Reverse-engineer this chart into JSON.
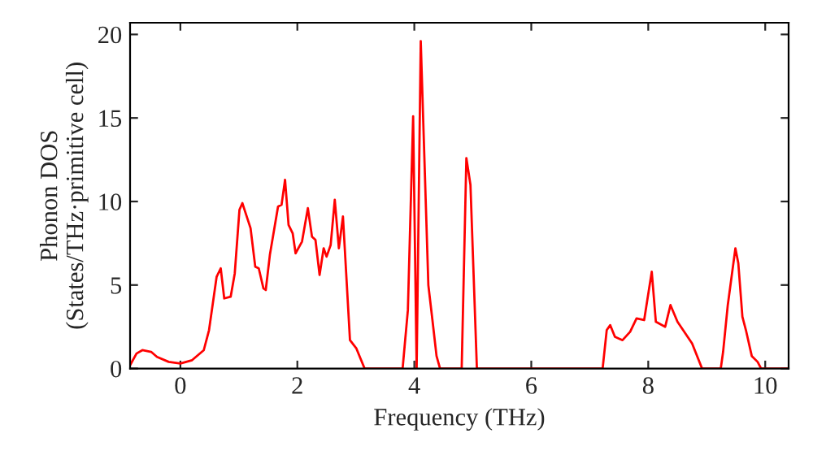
{
  "chart_data": {
    "type": "line",
    "xlabel": "Frequency (THz)",
    "ylabel": "Phonon DOS\n(States/THz·primitive cell)",
    "xlim": [
      -0.86,
      10.4
    ],
    "ylim": [
      0,
      20.7
    ],
    "xticks": [
      0,
      2,
      4,
      6,
      8,
      10
    ],
    "yticks": [
      0,
      5,
      10,
      15,
      20
    ],
    "grid": false,
    "marker": "none",
    "line_style": "solid",
    "series": [
      {
        "color": "#ff0000",
        "x": [
          -0.86,
          -0.75,
          -0.65,
          -0.5,
          -0.4,
          -0.2,
          0,
          0.2,
          0.4,
          0.49,
          0.62,
          0.69,
          0.75,
          0.86,
          0.93,
          1.01,
          1.06,
          1.2,
          1.28,
          1.34,
          1.42,
          1.46,
          1.53,
          1.67,
          1.73,
          1.79,
          1.85,
          1.92,
          1.97,
          2.08,
          2.18,
          2.25,
          2.31,
          2.38,
          2.45,
          2.5,
          2.57,
          2.64,
          2.71,
          2.78,
          2.9,
          3.01,
          3.15,
          3.8,
          3.89,
          3.98,
          4.04,
          4.11,
          4.24,
          4.31,
          4.38,
          4.44,
          4.81,
          4.89,
          4.96,
          5.07,
          7.22,
          7.29,
          7.35,
          7.43,
          7.56,
          7.69,
          7.8,
          7.93,
          8.06,
          8.13,
          8.29,
          8.38,
          8.5,
          8.75,
          8.92,
          9.24,
          9.28,
          9.36,
          9.49,
          9.54,
          9.61,
          9.67,
          9.77,
          9.87,
          9.93,
          10.4
        ],
        "values": [
          0.2,
          0.9,
          1.1,
          1.0,
          0.7,
          0.4,
          0.3,
          0.5,
          1.1,
          2.3,
          5.5,
          6.0,
          4.2,
          4.3,
          5.7,
          9.5,
          9.9,
          8.4,
          6.1,
          6.0,
          4.8,
          4.7,
          6.8,
          9.7,
          9.8,
          11.3,
          8.6,
          8.1,
          6.9,
          7.6,
          9.6,
          7.9,
          7.7,
          5.6,
          7.2,
          6.7,
          7.4,
          10.1,
          7.2,
          9.1,
          1.7,
          1.2,
          0,
          0,
          3.5,
          15.1,
          0,
          19.6,
          5.0,
          2.9,
          0.75,
          0,
          0,
          12.6,
          11.0,
          0,
          0,
          2.3,
          2.6,
          1.9,
          1.7,
          2.2,
          3.0,
          2.9,
          5.8,
          2.8,
          2.5,
          3.8,
          2.8,
          1.5,
          0,
          0,
          1.0,
          3.8,
          7.2,
          6.3,
          3.1,
          2.3,
          0.75,
          0.4,
          0,
          0
        ]
      }
    ]
  }
}
